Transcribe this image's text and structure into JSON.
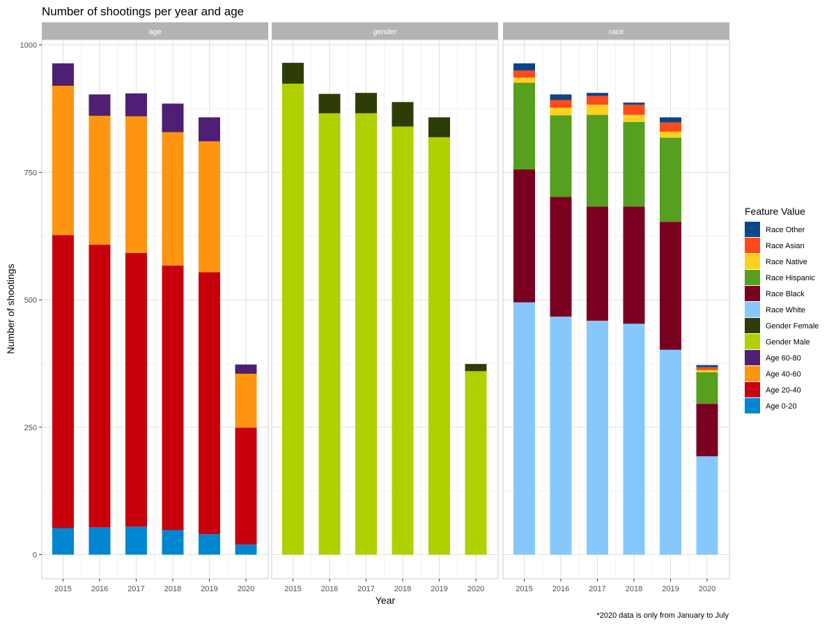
{
  "chart_data": {
    "type": "bar",
    "stacked": true,
    "title": "Number of shootings per year and age",
    "xlabel": "Year",
    "ylabel": "Number of shootings",
    "caption": "*2020 data is only from January to July",
    "ylim": [
      -50,
      1040
    ],
    "yticks": [
      0,
      250,
      500,
      750,
      1000
    ],
    "grid": true,
    "legend": {
      "title": "Feature Value",
      "placement": "right",
      "entries": [
        {
          "label": "Race Other",
          "color": "#08468a"
        },
        {
          "label": "Race Asian",
          "color": "#fe4a1b"
        },
        {
          "label": "Race Native",
          "color": "#ffd020"
        },
        {
          "label": "Race Hispanic",
          "color": "#569f1f"
        },
        {
          "label": "Race Black",
          "color": "#7a0020"
        },
        {
          "label": "Race White",
          "color": "#87c8fc"
        },
        {
          "label": "Gender Female",
          "color": "#2d3d05"
        },
        {
          "label": "Gender Male",
          "color": "#b0d000"
        },
        {
          "label": "Age 60-80",
          "color": "#4e1f74"
        },
        {
          "label": "Age 40-60",
          "color": "#ff9410"
        },
        {
          "label": "Age 20-40",
          "color": "#c8000c"
        },
        {
          "label": "Age 0-20",
          "color": "#0086d1"
        }
      ]
    },
    "categories": [
      "2015",
      "2016",
      "2017",
      "2018",
      "2019",
      "2020"
    ],
    "panels": [
      {
        "label": "age",
        "series": [
          {
            "name": "Age 0-20",
            "color": "#0086d1",
            "values": [
              52,
              54,
              55,
              48,
              40,
              20
            ]
          },
          {
            "name": "Age 20-40",
            "color": "#c8000c",
            "values": [
              575,
              554,
              537,
              519,
              514,
              229
            ]
          },
          {
            "name": "Age 40-60",
            "color": "#ff9410",
            "values": [
              293,
              253,
              268,
              262,
              257,
              106
            ]
          },
          {
            "name": "Age 60-80",
            "color": "#4e1f74",
            "values": [
              44,
              42,
              45,
              56,
              47,
              18
            ]
          }
        ]
      },
      {
        "label": "gender",
        "series": [
          {
            "name": "Gender Male",
            "color": "#b0d000",
            "values": [
              924,
              866,
              866,
              840,
              819,
              360
            ]
          },
          {
            "name": "Gender Female",
            "color": "#2d3d05",
            "values": [
              41,
              38,
              40,
              48,
              39,
              14
            ]
          }
        ]
      },
      {
        "label": "race",
        "series": [
          {
            "name": "Race White",
            "color": "#87c8fc",
            "values": [
              495,
              467,
              459,
              453,
              402,
              193
            ]
          },
          {
            "name": "Race Black",
            "color": "#7a0020",
            "values": [
              261,
              235,
              224,
              230,
              251,
              103
            ]
          },
          {
            "name": "Race Hispanic",
            "color": "#569f1f",
            "values": [
              170,
              160,
              180,
              166,
              165,
              62
            ]
          },
          {
            "name": "Race Native",
            "color": "#ffd020",
            "values": [
              10,
              15,
              20,
              14,
              12,
              4
            ]
          },
          {
            "name": "Race Asian",
            "color": "#fe4a1b",
            "values": [
              14,
              15,
              17,
              20,
              18,
              6
            ]
          },
          {
            "name": "Race Other",
            "color": "#08468a",
            "values": [
              14,
              11,
              6,
              4,
              10,
              4
            ]
          }
        ]
      }
    ]
  }
}
